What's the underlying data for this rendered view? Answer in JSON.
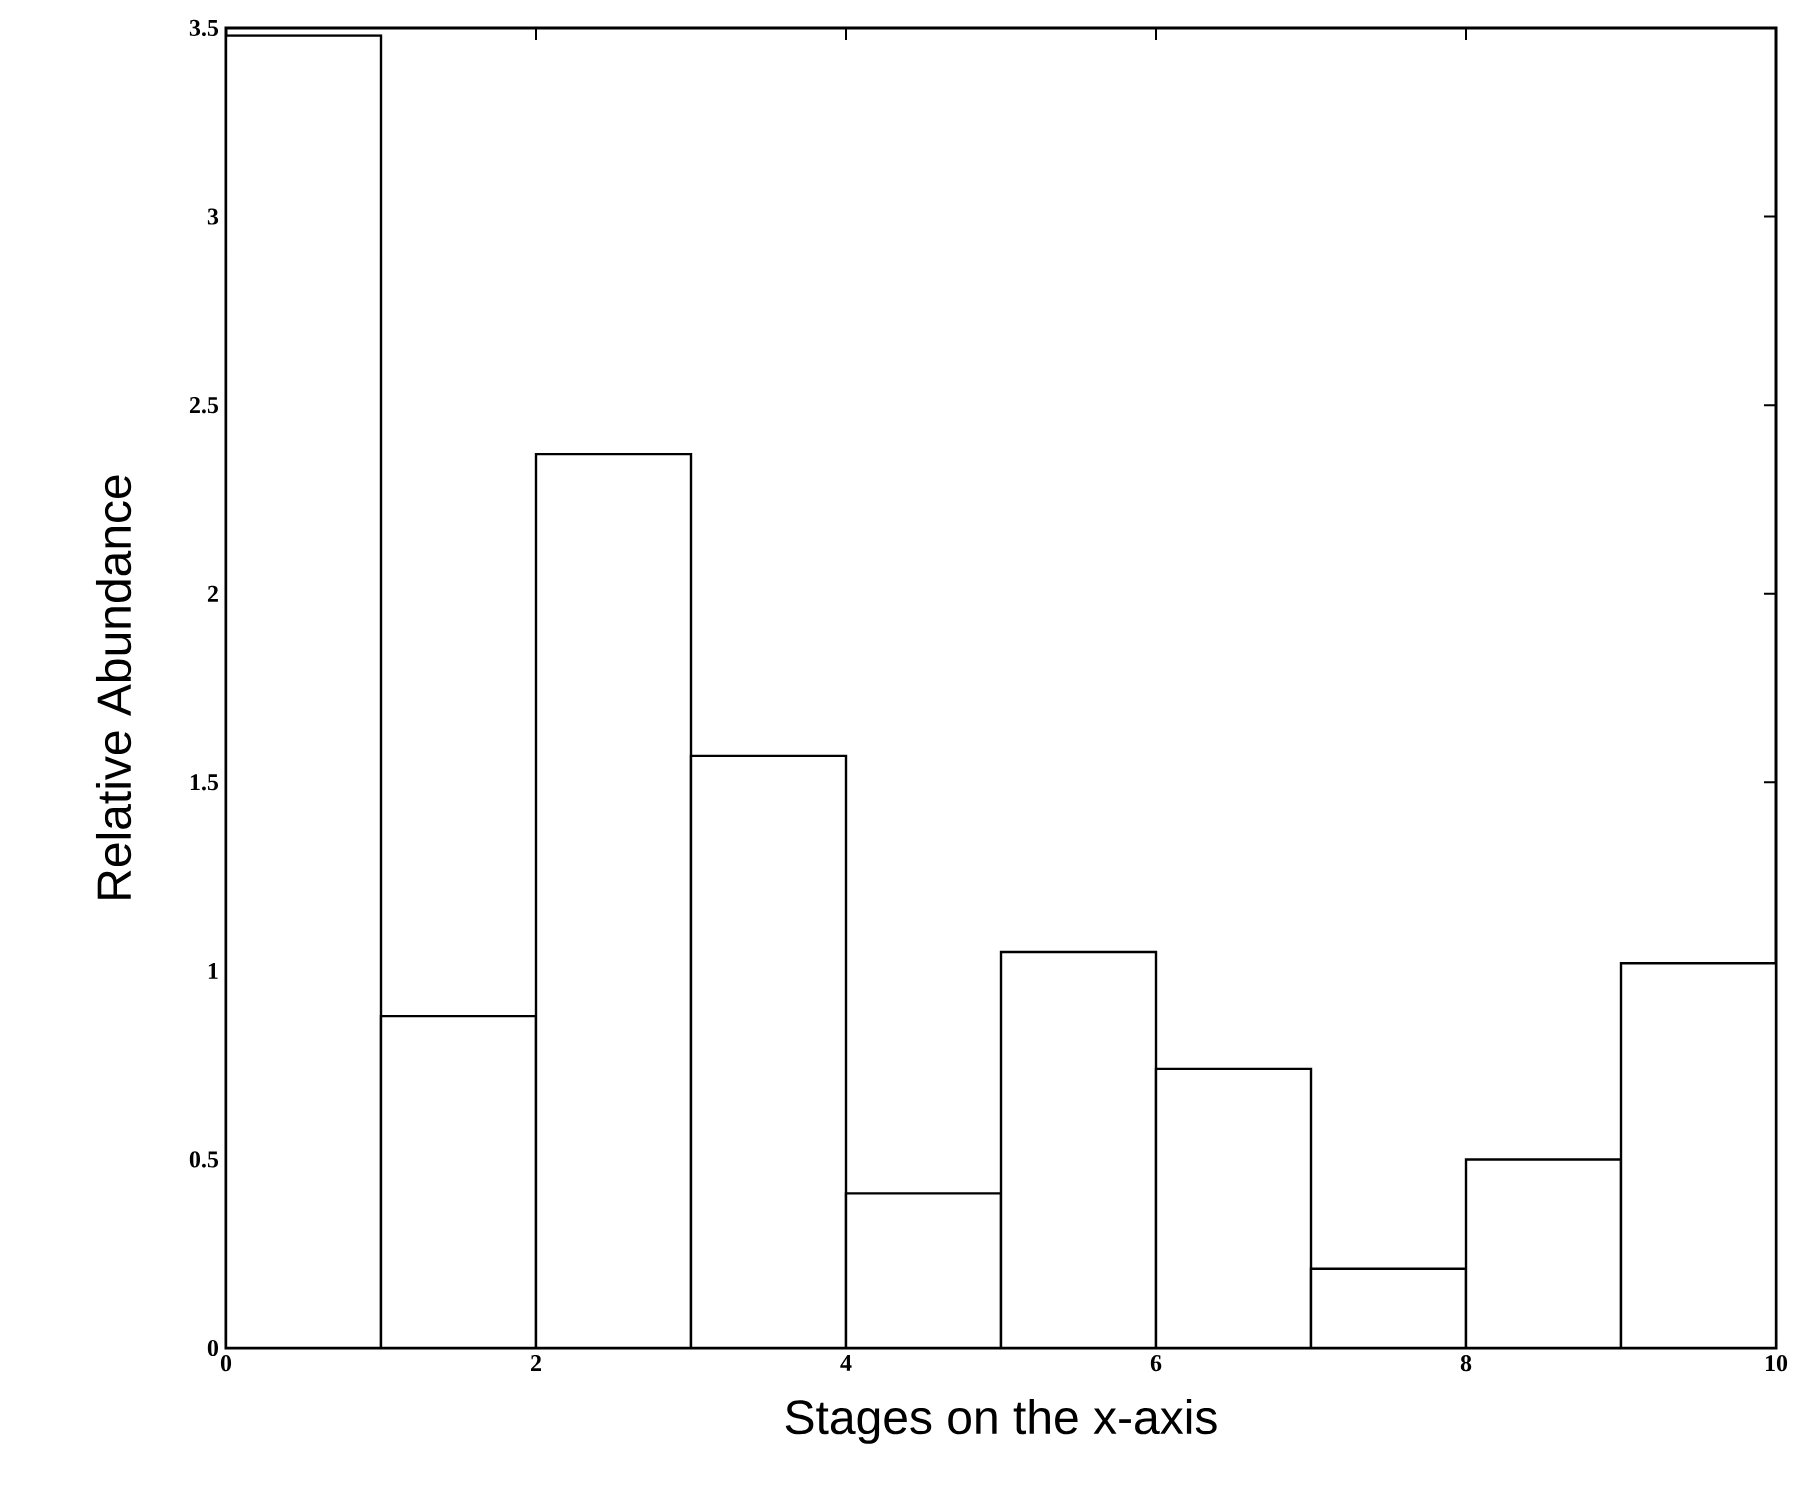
{
  "chart_data": {
    "type": "histogram",
    "xlabel": "Stages on the x-axis",
    "ylabel": "Relative Abundance",
    "bins": [
      0,
      1,
      2,
      3,
      4,
      5,
      6,
      7,
      8,
      9,
      10
    ],
    "values": [
      3.48,
      0.88,
      2.37,
      1.57,
      0.41,
      1.05,
      0.74,
      0.21,
      0.5,
      1.02
    ],
    "xlim": [
      0,
      10
    ],
    "ylim": [
      0,
      3.5
    ],
    "xticks": [
      0,
      2,
      4,
      6,
      8,
      10
    ],
    "yticks": [
      0,
      0.5,
      1,
      1.5,
      2,
      2.5,
      3,
      3.5
    ]
  }
}
